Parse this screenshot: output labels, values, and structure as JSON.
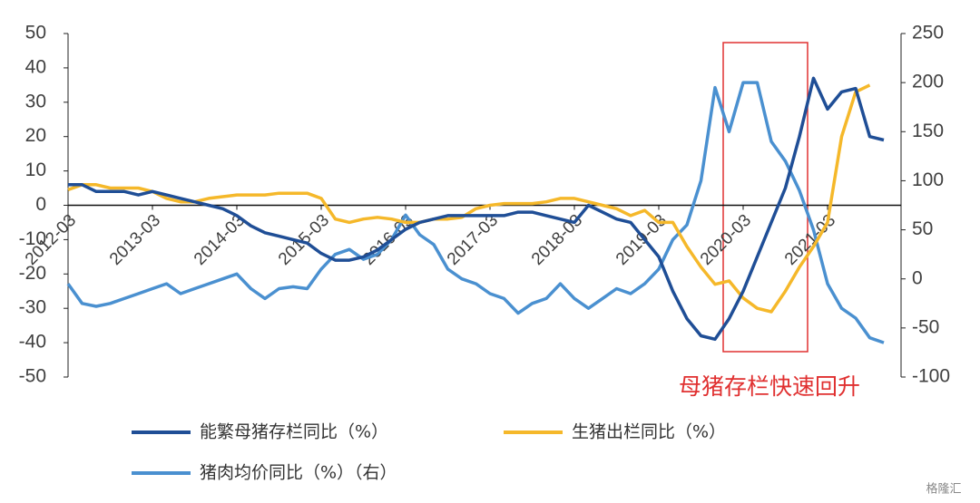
{
  "chart_data": {
    "type": "line",
    "categories": [
      "2012-03",
      null,
      null,
      null,
      null,
      null,
      "2013-03",
      null,
      null,
      null,
      null,
      null,
      "2014-03",
      null,
      null,
      null,
      null,
      null,
      "2015-03",
      null,
      null,
      null,
      null,
      null,
      "2016-03",
      null,
      null,
      null,
      null,
      null,
      "2017-03",
      null,
      null,
      null,
      null,
      null,
      "2018-03",
      null,
      null,
      null,
      null,
      null,
      "2019-03",
      null,
      null,
      null,
      null,
      null,
      "2020-03",
      null,
      null,
      null,
      null,
      null,
      "2021-03",
      null,
      null,
      null,
      null
    ],
    "series": [
      {
        "name": "能繁母猪存栏同比（%）",
        "color": "#1f4e96",
        "values": [
          6,
          6,
          4,
          4,
          4,
          3,
          4,
          3,
          2,
          1,
          0,
          -1,
          -3,
          -6,
          -8,
          -9,
          -10,
          -11,
          -14,
          -16,
          -16,
          -15,
          -13,
          -10,
          -7,
          -5,
          -4,
          -3,
          -3,
          -3,
          -3,
          -3,
          -2,
          -2,
          -3,
          -4,
          -5,
          0,
          -2,
          -4,
          -5,
          -10,
          -15,
          -25,
          -33,
          -38,
          -39,
          -33,
          -25,
          -15,
          -5,
          5,
          20,
          37,
          28,
          33,
          34,
          20,
          19
        ]
      },
      {
        "name": "生猪出栏同比（%）",
        "color": "#f5b82a",
        "values": [
          4.5,
          6,
          6,
          5,
          5,
          5,
          4,
          2,
          1,
          1,
          2,
          2.5,
          3,
          3,
          3,
          3.5,
          3.5,
          3.5,
          2,
          -4,
          -5,
          -4,
          -3.5,
          -4,
          -5,
          -5,
          -4,
          -4,
          -3.5,
          -1,
          0,
          0.5,
          0.5,
          0.5,
          1,
          2,
          2,
          1,
          0,
          -1,
          -3,
          -1.5,
          -5,
          -5,
          -12,
          -18,
          -23,
          -22,
          -27,
          -30,
          -31,
          -25,
          -18,
          -12,
          -5,
          20,
          33,
          35,
          null
        ]
      },
      {
        "name": "猪肉均价同比（%）（右）",
        "color": "#4a90d0",
        "axis": "y2",
        "values": [
          -5,
          -25,
          -28,
          -25,
          -20,
          -15,
          -10,
          -5,
          -15,
          -10,
          -5,
          0,
          5,
          -10,
          -20,
          -10,
          -8,
          -10,
          10,
          25,
          30,
          20,
          25,
          40,
          65,
          45,
          35,
          10,
          0,
          -5,
          -15,
          -20,
          -35,
          -25,
          -20,
          -5,
          -20,
          -30,
          -20,
          -10,
          -15,
          -5,
          10,
          40,
          55,
          100,
          195,
          150,
          200,
          200,
          140,
          120,
          90,
          50,
          -5,
          -30,
          -40,
          -60,
          -65
        ]
      }
    ],
    "ylim": [
      -50,
      50
    ],
    "yticks": [
      -50,
      -40,
      -30,
      -20,
      -10,
      0,
      10,
      20,
      30,
      40,
      50
    ],
    "y2lim": [
      -100,
      250
    ],
    "y2ticks": [
      -100,
      -50,
      0,
      50,
      100,
      150,
      200,
      250
    ],
    "annotation": "母猪存栏快速回升",
    "watermark": "格隆汇"
  }
}
